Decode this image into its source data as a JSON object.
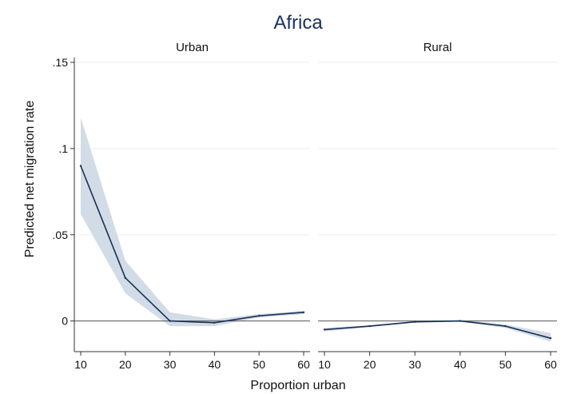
{
  "chart_data": {
    "type": "line",
    "title": "Africa",
    "xlabel": "Proportion urban",
    "ylabel": "Predicted net migration rate",
    "x_ticks": [
      "10",
      "20",
      "30",
      "40",
      "50",
      "60"
    ],
    "y_ticks": [
      "0",
      ".05",
      ".1",
      ".15"
    ],
    "xlim": [
      10,
      60
    ],
    "ylim": [
      -0.015,
      0.15
    ],
    "grid": true,
    "colors": {
      "line": "#1a2f5a",
      "band": "#d2dce6",
      "grid": "#eeeeee",
      "zero_line": "#555555"
    },
    "panels": [
      {
        "name": "Urban",
        "x": [
          10,
          20,
          30,
          40,
          50,
          60
        ],
        "y": [
          0.09,
          0.025,
          0.0,
          -0.001,
          0.003,
          0.005
        ],
        "ci_low": [
          0.062,
          0.016,
          -0.003,
          -0.003,
          0.002,
          0.004
        ],
        "ci_high": [
          0.118,
          0.035,
          0.005,
          0.001,
          0.004,
          0.006
        ]
      },
      {
        "name": "Rural",
        "x": [
          10,
          20,
          30,
          40,
          50,
          60
        ],
        "y": [
          -0.005,
          -0.003,
          -0.0005,
          0.0,
          -0.003,
          -0.01
        ],
        "ci_low": [
          -0.006,
          -0.0035,
          -0.001,
          -0.0005,
          -0.004,
          -0.012
        ],
        "ci_high": [
          -0.004,
          -0.0025,
          0.0,
          0.0005,
          -0.002,
          -0.007
        ]
      }
    ]
  }
}
